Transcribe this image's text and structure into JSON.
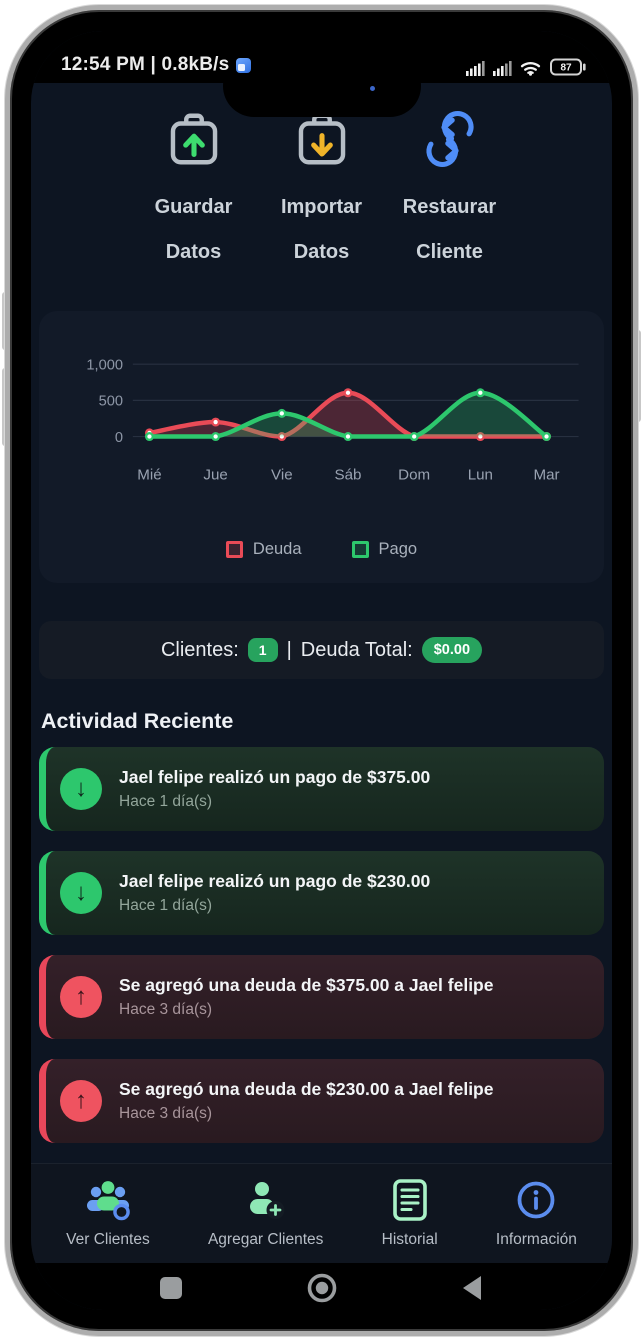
{
  "statusbar": {
    "left_text": "12:54 PM | 0.8kB/s",
    "battery_level": "87"
  },
  "actions": [
    {
      "line1": "Guardar",
      "line2": "Datos",
      "icon": "folder-upload-icon"
    },
    {
      "line1": "Importar",
      "line2": "Datos",
      "icon": "folder-download-icon"
    },
    {
      "line1": "Restaurar",
      "line2": "Cliente",
      "icon": "restore-sync-icon"
    }
  ],
  "chart_data": {
    "type": "line",
    "x": [
      "Mié",
      "Jue",
      "Vie",
      "Sáb",
      "Dom",
      "Lun",
      "Mar"
    ],
    "series": [
      {
        "name": "Deuda",
        "color": "#e94b57",
        "values": [
          50,
          200,
          0,
          605,
          0,
          0,
          0
        ]
      },
      {
        "name": "Pago",
        "color": "#2dc76d",
        "values": [
          0,
          0,
          320,
          0,
          0,
          605,
          0
        ]
      }
    ],
    "ylim": [
      0,
      1000
    ],
    "yticks": [
      0,
      500,
      1000
    ],
    "ytick_labels": [
      "0",
      "500",
      "1,000"
    ],
    "grid": true,
    "area_fill": true,
    "legend_position": "bottom"
  },
  "stats": {
    "clientes_label": "Clientes:",
    "clientes_value": "1",
    "separator": "|",
    "deuda_label": "Deuda Total:",
    "deuda_value": "$0.00"
  },
  "activity": {
    "heading": "Actividad Reciente",
    "items": [
      {
        "type": "pago",
        "arrow": "↓",
        "title": "Jael felipe realizó un pago de $375.00",
        "time": "Hace 1 día(s)"
      },
      {
        "type": "pago",
        "arrow": "↓",
        "title": "Jael felipe realizó un pago de $230.00",
        "time": "Hace 1 día(s)"
      },
      {
        "type": "deuda",
        "arrow": "↑",
        "title": "Se agregó una deuda de $375.00 a Jael felipe",
        "time": "Hace 3 día(s)"
      },
      {
        "type": "deuda",
        "arrow": "↑",
        "title": "Se agregó una deuda de $230.00 a Jael felipe",
        "time": "Hace 3 día(s)"
      }
    ]
  },
  "nav": {
    "items": [
      {
        "label": "Ver Clientes",
        "icon": "users-group-icon"
      },
      {
        "label": "Agregar Clientes",
        "icon": "person-add-icon"
      },
      {
        "label": "Historial",
        "icon": "document-icon"
      },
      {
        "label": "Información",
        "icon": "info-icon"
      }
    ]
  },
  "colors": {
    "app_background": "#0d1522",
    "card_background": "#121a28",
    "deuda_red": "#e94b57",
    "pago_green": "#2dc76d",
    "badge_green": "#27a35e",
    "accent_blue": "#4f8df7",
    "mint": "#a9f2c6"
  }
}
